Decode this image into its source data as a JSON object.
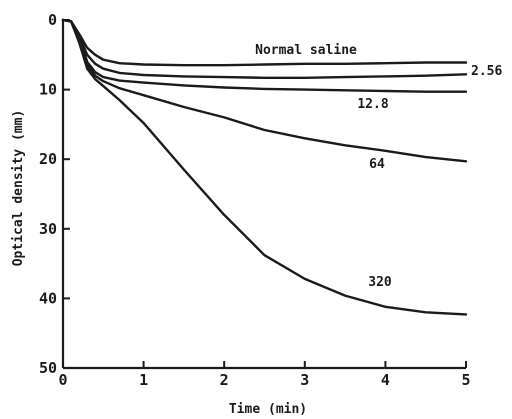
{
  "chart_data": {
    "type": "line",
    "title": "",
    "xlabel": "Time (min)",
    "ylabel": "Optical density (mm)",
    "xlim": [
      0,
      5
    ],
    "ylim": [
      0,
      50
    ],
    "y_inverted": true,
    "grid": false,
    "legend": "none",
    "x_ticks": [
      0,
      1,
      2,
      3,
      4,
      5
    ],
    "y_ticks": [
      0,
      10,
      20,
      30,
      40,
      50
    ],
    "series": [
      {
        "name": "Normal saline",
        "x": [
          0,
          0.1,
          0.2,
          0.3,
          0.4,
          0.5,
          0.7,
          1,
          1.5,
          2,
          2.5,
          3,
          3.5,
          4,
          4.5,
          5
        ],
        "y": [
          0,
          0.2,
          2,
          4,
          5,
          5.7,
          6.2,
          6.4,
          6.5,
          6.5,
          6.4,
          6.3,
          6.3,
          6.2,
          6.1,
          6.1
        ]
      },
      {
        "name": "2.56",
        "x": [
          0,
          0.1,
          0.2,
          0.3,
          0.4,
          0.5,
          0.7,
          1,
          1.5,
          2,
          2.5,
          3,
          3.5,
          4,
          4.5,
          5
        ],
        "y": [
          0,
          0.2,
          2.3,
          5,
          6.3,
          7,
          7.6,
          7.9,
          8.1,
          8.2,
          8.3,
          8.3,
          8.2,
          8.1,
          8.0,
          7.8
        ]
      },
      {
        "name": "12.8",
        "x": [
          0,
          0.1,
          0.2,
          0.3,
          0.4,
          0.5,
          0.7,
          1,
          1.5,
          2,
          2.5,
          3,
          3.5,
          4,
          4.5,
          5
        ],
        "y": [
          0,
          0.2,
          2.5,
          6,
          7.5,
          8.2,
          8.7,
          9,
          9.4,
          9.7,
          9.9,
          10.0,
          10.1,
          10.2,
          10.3,
          10.3
        ]
      },
      {
        "name": "64",
        "x": [
          0,
          0.1,
          0.2,
          0.3,
          0.4,
          0.5,
          0.7,
          1,
          1.5,
          2,
          2.5,
          3,
          3.5,
          4,
          4.5,
          5
        ],
        "y": [
          0,
          0.2,
          3,
          6.5,
          8,
          8.8,
          9.8,
          10.8,
          12.5,
          14,
          15.8,
          17,
          18,
          18.8,
          19.7,
          20.3
        ]
      },
      {
        "name": "320",
        "x": [
          0,
          0.1,
          0.2,
          0.3,
          0.4,
          0.5,
          0.7,
          1,
          1.5,
          2,
          2.5,
          3,
          3.5,
          4,
          4.5,
          5
        ],
        "y": [
          0,
          0.2,
          3.2,
          7,
          8.5,
          9.5,
          11.5,
          14.8,
          21.5,
          28,
          33.8,
          37.2,
          39.6,
          41.2,
          42,
          42.3
        ]
      }
    ]
  }
}
